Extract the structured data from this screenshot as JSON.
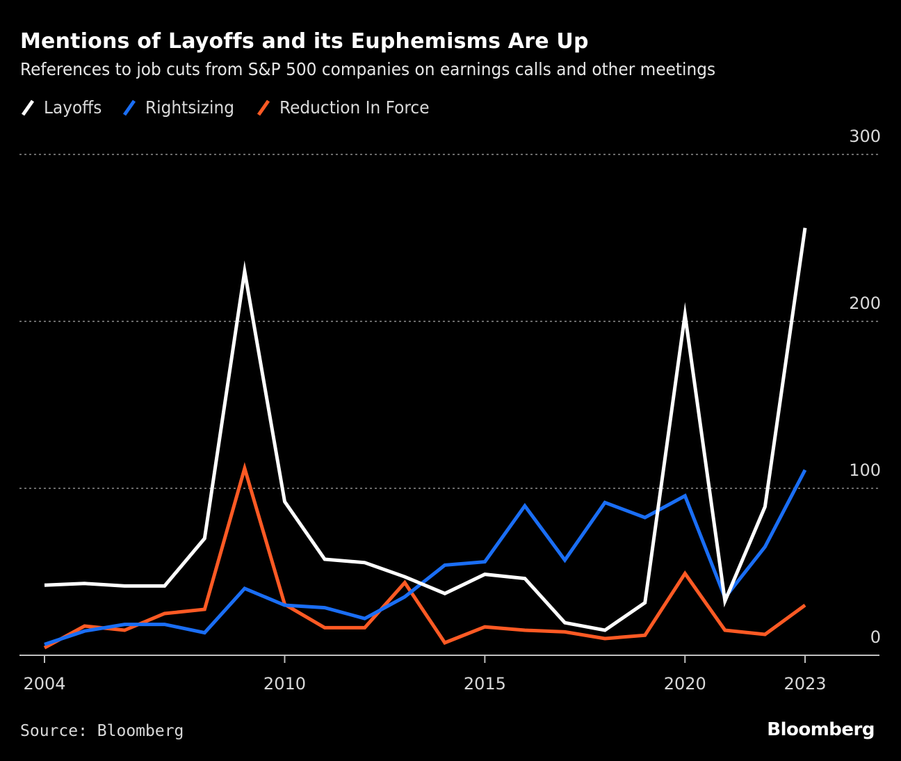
{
  "header": {
    "title": "Mentions of Layoffs and its Euphemisms Are Up",
    "subtitle": "References to job cuts from S&P 500 companies on earnings calls and other meetings"
  },
  "footer": {
    "source": "Source: Bloomberg",
    "brand": "Bloomberg"
  },
  "colors": {
    "background": "#000000",
    "layoffs": "#ffffff",
    "rightsizing": "#1a6ef5",
    "reduction_in_force": "#ff5a24",
    "gridline": "#6b6b6b",
    "axis": "#bfbfbf",
    "tick_text": "#d9d9d9"
  },
  "chart_data": {
    "type": "line",
    "title": "Mentions of Layoffs and its Euphemisms Are Up",
    "subtitle": "References to job cuts from S&P 500 companies on earnings calls and other meetings",
    "xlabel": "",
    "ylabel": "",
    "x": [
      2004,
      2005,
      2006,
      2007,
      2008,
      2009,
      2010,
      2011,
      2012,
      2013,
      2014,
      2015,
      2016,
      2017,
      2018,
      2019,
      2020,
      2021,
      2022,
      2023
    ],
    "xlim": [
      2004,
      2023
    ],
    "xlim_display": [
      2003.4,
      2024.9
    ],
    "x_ticks": [
      2004,
      2010,
      2015,
      2020,
      2023
    ],
    "x_tick_labels": [
      "2004",
      "2010",
      "2015",
      "2020",
      "2023"
    ],
    "ylim": [
      0,
      300
    ],
    "y_ticks": [
      0,
      100,
      200,
      300
    ],
    "y_tick_labels": [
      "0",
      "100",
      "200",
      "300"
    ],
    "y_axis_position": "right",
    "grid": true,
    "grid_style": "dotted",
    "legend_position": "top-left",
    "series": [
      {
        "name": "Layoffs",
        "key": "layoffs",
        "color": "#ffffff",
        "values": [
          42,
          43,
          41.5,
          41.5,
          70,
          230,
          92,
          57.5,
          55.5,
          47,
          37,
          48.5,
          46,
          19.5,
          15,
          31.5,
          204,
          32.5,
          89,
          256
        ]
      },
      {
        "name": "Rightsizing",
        "key": "rightsizing",
        "color": "#1a6ef5",
        "values": [
          6.5,
          14.5,
          18.5,
          18.5,
          13.5,
          40,
          30,
          28.5,
          22,
          35,
          54,
          56,
          89.5,
          57,
          91.5,
          82.5,
          95.5,
          34.5,
          65,
          111
        ]
      },
      {
        "name": "Reduction In Force",
        "key": "reduction_in_force",
        "color": "#ff5a24",
        "values": [
          4.5,
          17.5,
          15,
          25,
          27.5,
          112,
          30.5,
          16.5,
          16.5,
          43.5,
          7.5,
          17,
          15,
          14,
          10,
          12,
          49,
          15,
          12.5,
          30
        ]
      }
    ]
  }
}
